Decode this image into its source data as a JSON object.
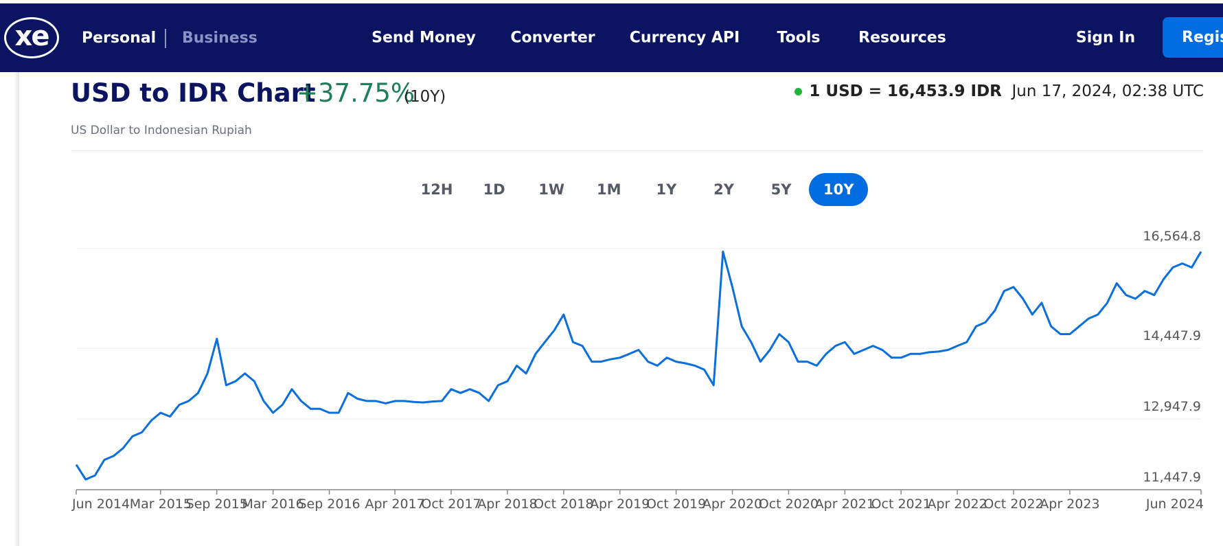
{
  "nav": {
    "logo": "xe",
    "tabs": [
      "Personal",
      "Business"
    ],
    "links": [
      "Send Money",
      "Converter",
      "Currency API",
      "Tools",
      "Resources"
    ],
    "sign_in": "Sign In",
    "register": "Register"
  },
  "header": {
    "title": "USD to IDR Chart",
    "change": "+37.75%",
    "period": "(10Y)",
    "subtitle": "US Dollar to Indonesian Rupiah",
    "rate": "1 USD = 16,453.9 IDR",
    "timestamp": "Jun 17, 2024, 02:38 UTC"
  },
  "ranges": [
    {
      "label": "12H",
      "selected": false
    },
    {
      "label": "1D",
      "selected": false
    },
    {
      "label": "1W",
      "selected": false
    },
    {
      "label": "1M",
      "selected": false
    },
    {
      "label": "1Y",
      "selected": false
    },
    {
      "label": "2Y",
      "selected": false
    },
    {
      "label": "5Y",
      "selected": false
    },
    {
      "label": "10Y",
      "selected": true
    }
  ],
  "chart_data": {
    "type": "line",
    "color": "#0a6fdc",
    "grid": true,
    "x": [
      "Jun 2014",
      "Jul 2014",
      "Aug 2014",
      "Sep 2014",
      "Oct 2014",
      "Nov 2014",
      "Dec 2014",
      "Jan 2015",
      "Feb 2015",
      "Mar 2015",
      "Apr 2015",
      "May 2015",
      "Jun 2015",
      "Jul 2015",
      "Aug 2015",
      "Sep 2015",
      "Oct 2015",
      "Nov 2015",
      "Dec 2015",
      "Jan 2016",
      "Feb 2016",
      "Mar 2016",
      "Apr 2016",
      "May 2016",
      "Jun 2016",
      "Jul 2016",
      "Aug 2016",
      "Sep 2016",
      "Oct 2016",
      "Nov 2016",
      "Dec 2016",
      "Jan 2017",
      "Feb 2017",
      "Mar 2017",
      "Apr 2017",
      "May 2017",
      "Jun 2017",
      "Jul 2017",
      "Aug 2017",
      "Sep 2017",
      "Oct 2017",
      "Nov 2017",
      "Dec 2017",
      "Jan 2018",
      "Feb 2018",
      "Mar 2018",
      "Apr 2018",
      "May 2018",
      "Jun 2018",
      "Jul 2018",
      "Aug 2018",
      "Sep 2018",
      "Oct 2018",
      "Nov 2018",
      "Dec 2018",
      "Jan 2019",
      "Feb 2019",
      "Mar 2019",
      "Apr 2019",
      "May 2019",
      "Jun 2019",
      "Jul 2019",
      "Aug 2019",
      "Sep 2019",
      "Oct 2019",
      "Nov 2019",
      "Dec 2019",
      "Jan 2020",
      "Feb 2020",
      "Mar 2020",
      "Apr 2020",
      "May 2020",
      "Jun 2020",
      "Jul 2020",
      "Aug 2020",
      "Sep 2020",
      "Oct 2020",
      "Nov 2020",
      "Dec 2020",
      "Jan 2021",
      "Feb 2021",
      "Mar 2021",
      "Apr 2021",
      "May 2021",
      "Jun 2021",
      "Jul 2021",
      "Aug 2021",
      "Sep 2021",
      "Oct 2021",
      "Nov 2021",
      "Dec 2021",
      "Jan 2022",
      "Feb 2022",
      "Mar 2022",
      "Apr 2022",
      "May 2022",
      "Jun 2022",
      "Jul 2022",
      "Aug 2022",
      "Sep 2022",
      "Oct 2022",
      "Nov 2022",
      "Dec 2022",
      "Jan 2023",
      "Feb 2023",
      "Mar 2023",
      "Apr 2023",
      "May 2023",
      "Jun 2023",
      "Jul 2023",
      "Aug 2023",
      "Sep 2023",
      "Oct 2023",
      "Nov 2023",
      "Dec 2023",
      "Jan 2024",
      "Feb 2024",
      "Mar 2024",
      "Apr 2024",
      "May 2024",
      "Jun 2024"
    ],
    "values": [
      11980,
      11665,
      11750,
      12080,
      12165,
      12330,
      12580,
      12665,
      12915,
      13080,
      13000,
      13250,
      13330,
      13500,
      13915,
      14650,
      13665,
      13750,
      13915,
      13750,
      13330,
      13080,
      13250,
      13580,
      13330,
      13165,
      13165,
      13080,
      13080,
      13500,
      13380,
      13330,
      13330,
      13280,
      13330,
      13330,
      13310,
      13300,
      13320,
      13330,
      13580,
      13500,
      13580,
      13500,
      13330,
      13665,
      13750,
      14080,
      13915,
      14330,
      14580,
      14830,
      15165,
      14580,
      14500,
      14165,
      14165,
      14215,
      14250,
      14330,
      14415,
      14165,
      14080,
      14250,
      14165,
      14130,
      14080,
      13995,
      13665,
      16500,
      15750,
      14915,
      14580,
      14165,
      14415,
      14750,
      14580,
      14165,
      14165,
      14080,
      14330,
      14500,
      14580,
      14330,
      14415,
      14500,
      14415,
      14250,
      14250,
      14330,
      14330,
      14365,
      14380,
      14415,
      14500,
      14580,
      14915,
      15000,
      15250,
      15665,
      15750,
      15500,
      15165,
      15415,
      14915,
      14750,
      14750,
      14915,
      15080,
      15165,
      15415,
      15830,
      15580,
      15500,
      15665,
      15580,
      15915,
      16165,
      16250,
      16165,
      16500
    ],
    "xticks": [
      "Jun 2014",
      "Mar 2015",
      "Sep 2015",
      "Mar 2016",
      "Sep 2016",
      "Apr 2017",
      "Oct 2017",
      "Apr 2018",
      "Oct 2018",
      "Apr 2019",
      "Oct 2019",
      "Apr 2020",
      "Oct 2020",
      "Apr 2021",
      "Oct 2021",
      "Apr 2022",
      "Oct 2022",
      "Apr 2023",
      "Jun 2024"
    ],
    "ylim": [
      11447.9,
      16564.8
    ],
    "yticks": [
      {
        "value": 11447.9,
        "label": "11,447.9"
      },
      {
        "value": 12947.9,
        "label": "12,947.9"
      },
      {
        "value": 14447.9,
        "label": "14,447.9"
      },
      {
        "value": 16564.8,
        "label": "16,564.8"
      }
    ]
  }
}
